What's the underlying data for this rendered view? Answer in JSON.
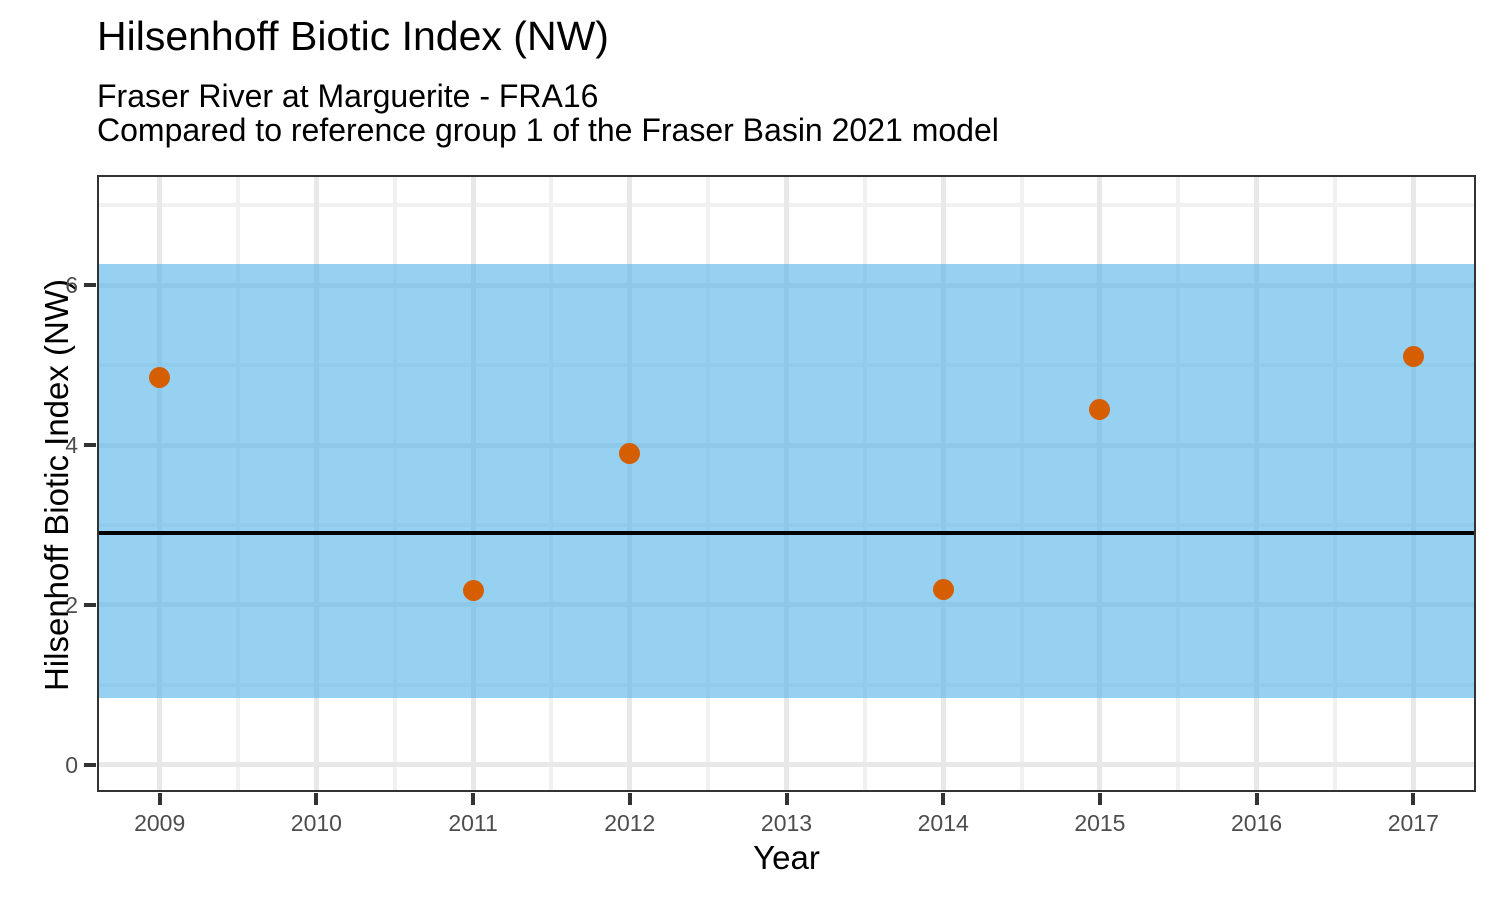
{
  "header": {
    "title": "Hilsenhoff Biotic Index (NW)",
    "subtitle_line1": "Fraser River at Marguerite - FRA16",
    "subtitle_line2": "Compared to reference group 1 of the Fraser Basin 2021 model"
  },
  "chart_data": {
    "type": "scatter",
    "title": "Hilsenhoff Biotic Index (NW)",
    "subtitle": "Fraser River at Marguerite - FRA16 | Compared to reference group 1 of the Fraser Basin 2021 model",
    "xlabel": "Year",
    "ylabel": "Hilsenhoff Biotic Index (NW)",
    "x": [
      2009,
      2011,
      2012,
      2014,
      2015,
      2017
    ],
    "y": [
      4.85,
      2.18,
      3.89,
      2.19,
      4.45,
      5.11
    ],
    "reference_band": {
      "ymin": 0.83,
      "ymax": 6.27,
      "fill": "#56B4E9",
      "alpha": 0.62
    },
    "reference_line": {
      "y": 2.9,
      "color": "#000000",
      "width": 4
    },
    "xlim": [
      2008.6,
      2017.4
    ],
    "ylim": [
      -0.34,
      7.38
    ],
    "x_ticks": [
      2009,
      2010,
      2011,
      2012,
      2013,
      2014,
      2015,
      2016,
      2017
    ],
    "y_ticks": [
      0,
      2,
      4,
      6
    ],
    "x_minor": [
      2009.5,
      2010.5,
      2011.5,
      2012.5,
      2013.5,
      2014.5,
      2015.5,
      2016.5
    ],
    "y_minor": [
      1,
      3,
      5,
      7
    ],
    "grid": true,
    "legend": "none",
    "colors": {
      "point": "#D55E00",
      "grid_major": "#e8e8e8",
      "grid_minor": "#f1f1f1",
      "axis_text": "#4d4d4d",
      "axis_line": "#333333",
      "panel_border": "#333333"
    }
  }
}
